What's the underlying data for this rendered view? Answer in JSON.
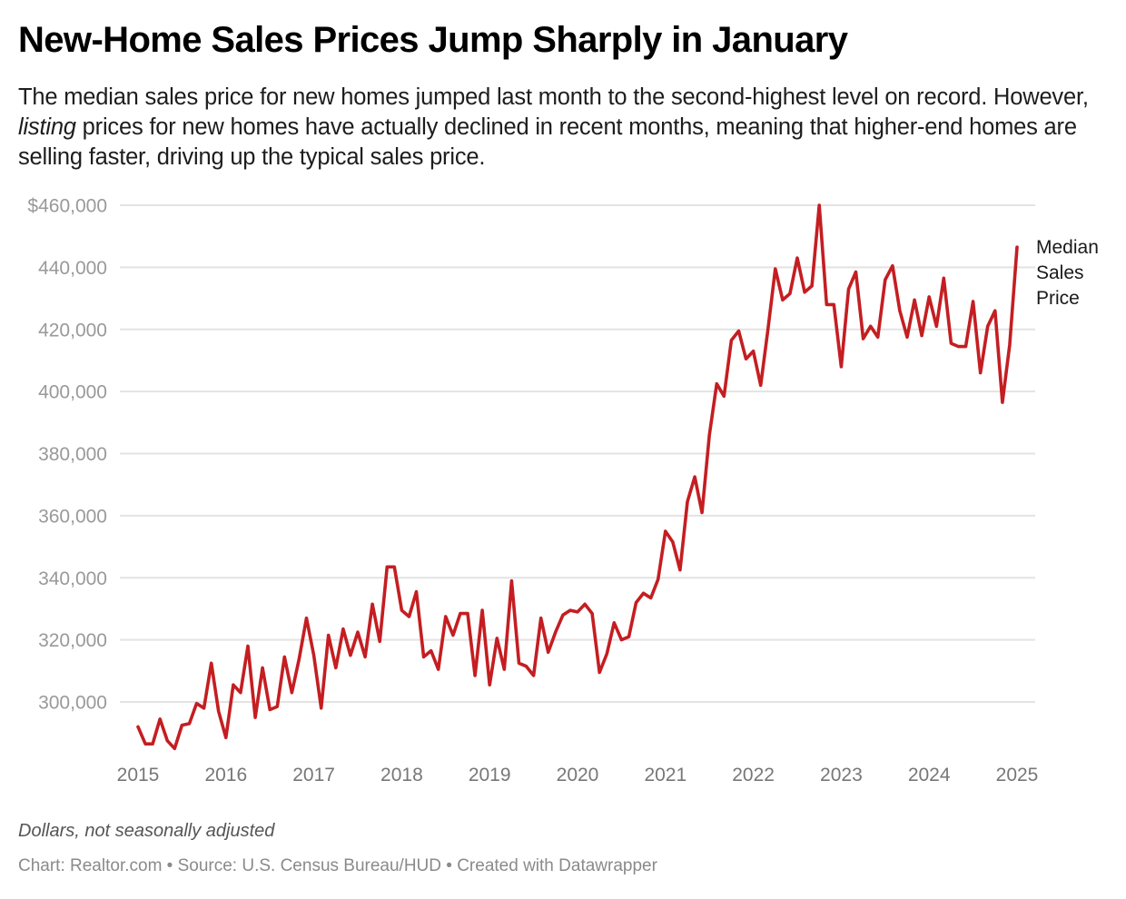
{
  "header": {
    "title": "New-Home Sales Prices Jump Sharply in January",
    "subtitle_parts": {
      "before": "The median sales price for new homes jumped last month to the second-highest level on record. However, ",
      "emphasis": "listing",
      "after": " prices for new homes have actually declined in recent months, meaning that higher-end homes are selling faster, driving up the typical sales price."
    }
  },
  "notes": "Dollars, not seasonally adjusted",
  "footer": "Chart: Realtor.com • Source: U.S. Census Bureau/HUD • Created with Datawrapper",
  "colors": {
    "series": "#c41e22",
    "grid": "#e3e3e3",
    "ytick": "#999999",
    "xtick": "#777777"
  },
  "chart_data": {
    "type": "line",
    "title": "New-Home Sales Prices Jump Sharply in January",
    "xlabel": "",
    "ylabel": "Dollars, not seasonally adjusted",
    "x_start": "2015-01",
    "x_frequency": "monthly",
    "xlim": [
      2015,
      2025
    ],
    "ylim": [
      283000,
      460000
    ],
    "grid": true,
    "legend": "direct-label-right",
    "x_ticks": [
      "2015",
      "2016",
      "2017",
      "2018",
      "2019",
      "2020",
      "2021",
      "2022",
      "2023",
      "2024",
      "2025"
    ],
    "y_ticks": [
      {
        "value": 460000,
        "label": "$460,000"
      },
      {
        "value": 440000,
        "label": "440,000"
      },
      {
        "value": 420000,
        "label": "420,000"
      },
      {
        "value": 400000,
        "label": "400,000"
      },
      {
        "value": 380000,
        "label": "380,000"
      },
      {
        "value": 360000,
        "label": "360,000"
      },
      {
        "value": 340000,
        "label": "340,000"
      },
      {
        "value": 320000,
        "label": "320,000"
      },
      {
        "value": 300000,
        "label": "300,000"
      }
    ],
    "series": [
      {
        "name": "Median Sales Price",
        "label_lines": [
          "Median",
          "Sales",
          "Price"
        ],
        "values": [
          292000,
          286500,
          286500,
          294500,
          287500,
          285000,
          292500,
          293000,
          299500,
          298000,
          312500,
          297000,
          288500,
          305500,
          303000,
          318000,
          295000,
          311000,
          297500,
          298500,
          314500,
          303000,
          314000,
          327000,
          315000,
          298000,
          321500,
          311000,
          323500,
          315000,
          322500,
          314500,
          331500,
          319500,
          343500,
          343500,
          329500,
          327500,
          335500,
          314500,
          316500,
          310500,
          327500,
          321500,
          328500,
          328500,
          308500,
          329500,
          305500,
          320500,
          310500,
          339000,
          312500,
          311500,
          308500,
          327000,
          316000,
          322500,
          328000,
          329500,
          329000,
          331500,
          328500,
          309500,
          315500,
          325500,
          320000,
          321000,
          332000,
          335000,
          333500,
          339500,
          355000,
          351500,
          342500,
          364500,
          372500,
          361000,
          386000,
          402500,
          398500,
          416500,
          419500,
          410500,
          413000,
          402000,
          420000,
          439500,
          429500,
          431500,
          443000,
          432000,
          434000,
          460000,
          428000,
          428000,
          408000,
          433000,
          438500,
          417000,
          421000,
          417500,
          436000,
          440500,
          426000,
          417500,
          429500,
          418000,
          430500,
          421000,
          436500,
          415500,
          414500,
          414500,
          429000,
          406000,
          421000,
          426000,
          396500,
          415000,
          446500
        ]
      }
    ]
  }
}
